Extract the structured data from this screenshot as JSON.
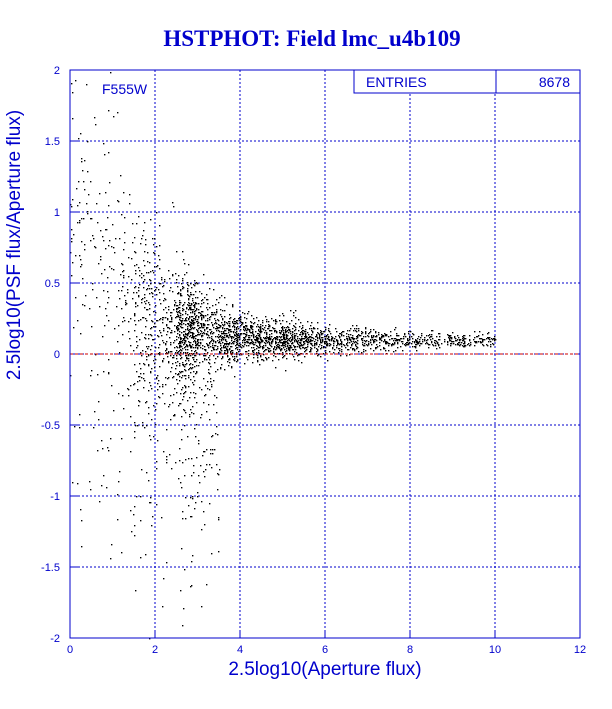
{
  "title": "HSTPHOT: Field lmc_u4b109",
  "colors": {
    "axis": "#0000cc",
    "points": "#000000",
    "zero_line": "#cc0000",
    "background": "#ffffff"
  },
  "chart_data": {
    "type": "scatter",
    "title": "HSTPHOT: Field lmc_u4b109",
    "xlabel": "2.5log10(Aperture flux)",
    "ylabel": "2.5log10(PSF flux/Aperture flux)",
    "xlim": [
      0,
      12
    ],
    "ylim": [
      -2,
      2
    ],
    "xticks": [
      "0",
      "2",
      "4",
      "6",
      "8",
      "10",
      "12"
    ],
    "yticks": [
      "-2",
      "-1.5",
      "-1",
      "-0.5",
      "0",
      "0.5",
      "1",
      "1.5",
      "2"
    ],
    "grid": true,
    "reference_line_y": 0,
    "annotation": "F555W",
    "stats_box": {
      "label": "ENTRIES",
      "value": "8678"
    },
    "n_points": 8678,
    "density_profile": [
      {
        "x": 0.5,
        "y_center": 0.9,
        "y_spread": 0.5
      },
      {
        "x": 1.0,
        "y_center": 0.6,
        "y_spread": 0.45
      },
      {
        "x": 1.5,
        "y_center": 0.35,
        "y_spread": 0.4
      },
      {
        "x": 2.0,
        "y_center": 0.25,
        "y_spread": 0.3
      },
      {
        "x": 3.0,
        "y_center": 0.15,
        "y_spread": 0.15
      },
      {
        "x": 4.0,
        "y_center": 0.12,
        "y_spread": 0.08
      },
      {
        "x": 6.0,
        "y_center": 0.1,
        "y_spread": 0.05
      },
      {
        "x": 8.0,
        "y_center": 0.1,
        "y_spread": 0.03
      },
      {
        "x": 10.0,
        "y_center": 0.1,
        "y_spread": 0.02
      }
    ]
  }
}
